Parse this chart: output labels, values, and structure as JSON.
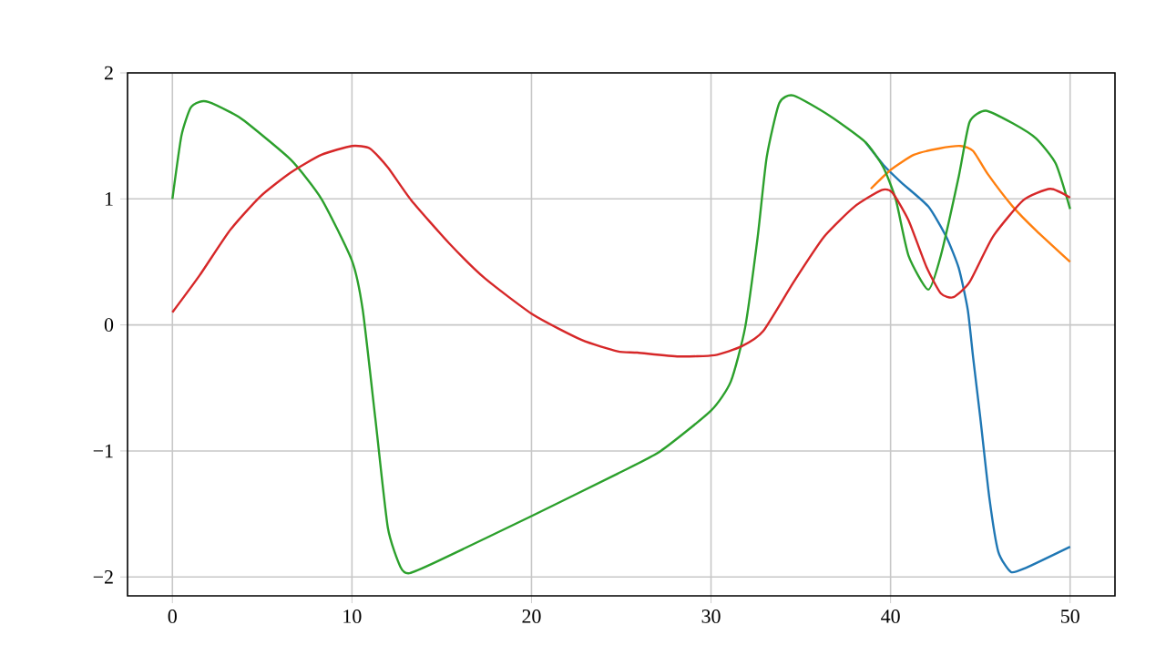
{
  "chart_data": {
    "type": "line",
    "xlim": [
      -2.5,
      52.5
    ],
    "ylim": [
      -2.15,
      2.0
    ],
    "xticks": [
      0,
      10,
      20,
      30,
      40,
      50
    ],
    "yticks": [
      {
        "value": -2,
        "label": "−2"
      },
      {
        "value": -1,
        "label": "−1"
      },
      0,
      1,
      2
    ],
    "grid": true,
    "marker": "none",
    "line_style": "solid",
    "series": [
      {
        "color": "#1f77b4",
        "x": [
          38.6,
          39.6,
          40.6,
          42.1,
          43.1,
          43.8,
          44.3,
          44.6,
          45.0,
          45.5,
          46.0,
          46.7,
          47.5,
          50.0
        ],
        "values": [
          1.45,
          1.27,
          1.13,
          0.94,
          0.7,
          0.45,
          0.12,
          -0.26,
          -0.74,
          -1.37,
          -1.8,
          -1.96,
          -1.93,
          -1.76
        ]
      },
      {
        "color": "#ff7f0e",
        "x": [
          38.9,
          40.0,
          41.3,
          42.7,
          43.9,
          44.6,
          45.4,
          46.8,
          48.1,
          50.0
        ],
        "values": [
          1.08,
          1.23,
          1.35,
          1.4,
          1.42,
          1.38,
          1.2,
          0.94,
          0.75,
          0.5
        ]
      },
      {
        "color": "#2ca02c",
        "x": [
          0,
          0.5,
          1.0,
          1.5,
          2.0,
          3.2,
          4.0,
          6.6,
          8.3,
          10.0,
          10.6,
          11.3,
          12.0,
          12.7,
          13.2,
          14.7,
          20.1,
          24.8,
          27.2,
          30.0,
          31.1,
          31.9,
          32.6,
          33.1,
          33.8,
          34.6,
          36.6,
          38.6,
          39.6,
          40.3,
          41.0,
          42.1,
          42.8,
          43.8,
          44.4,
          45.3,
          46.8,
          48.1,
          49.2,
          50.0
        ],
        "values": [
          1.0,
          1.5,
          1.72,
          1.77,
          1.77,
          1.69,
          1.62,
          1.31,
          1.0,
          0.51,
          0.12,
          -0.74,
          -1.61,
          -1.92,
          -1.97,
          -1.88,
          -1.51,
          -1.18,
          -1.0,
          -0.68,
          -0.45,
          -0.02,
          0.7,
          1.33,
          1.76,
          1.82,
          1.66,
          1.45,
          1.25,
          0.99,
          0.55,
          0.28,
          0.55,
          1.18,
          1.61,
          1.7,
          1.6,
          1.48,
          1.28,
          0.92
        ]
      },
      {
        "color": "#d62728",
        "x": [
          0,
          1.5,
          3.2,
          4.9,
          6.6,
          8.3,
          10.0,
          11.0,
          12.0,
          13.3,
          15.4,
          17.4,
          20.1,
          22.8,
          24.8,
          25.9,
          28.2,
          30.2,
          31.7,
          32.9,
          34.6,
          36.3,
          38.0,
          39.5,
          40.1,
          41.0,
          42.0,
          42.8,
          43.5,
          44.4,
          45.7,
          47.4,
          48.9,
          50.0
        ],
        "values": [
          0.1,
          0.39,
          0.75,
          1.02,
          1.21,
          1.35,
          1.42,
          1.4,
          1.25,
          0.99,
          0.65,
          0.37,
          0.08,
          -0.12,
          -0.21,
          -0.22,
          -0.25,
          -0.24,
          -0.17,
          -0.05,
          0.34,
          0.7,
          0.94,
          1.07,
          1.05,
          0.83,
          0.46,
          0.25,
          0.22,
          0.34,
          0.7,
          0.99,
          1.08,
          1.01
        ]
      }
    ]
  }
}
